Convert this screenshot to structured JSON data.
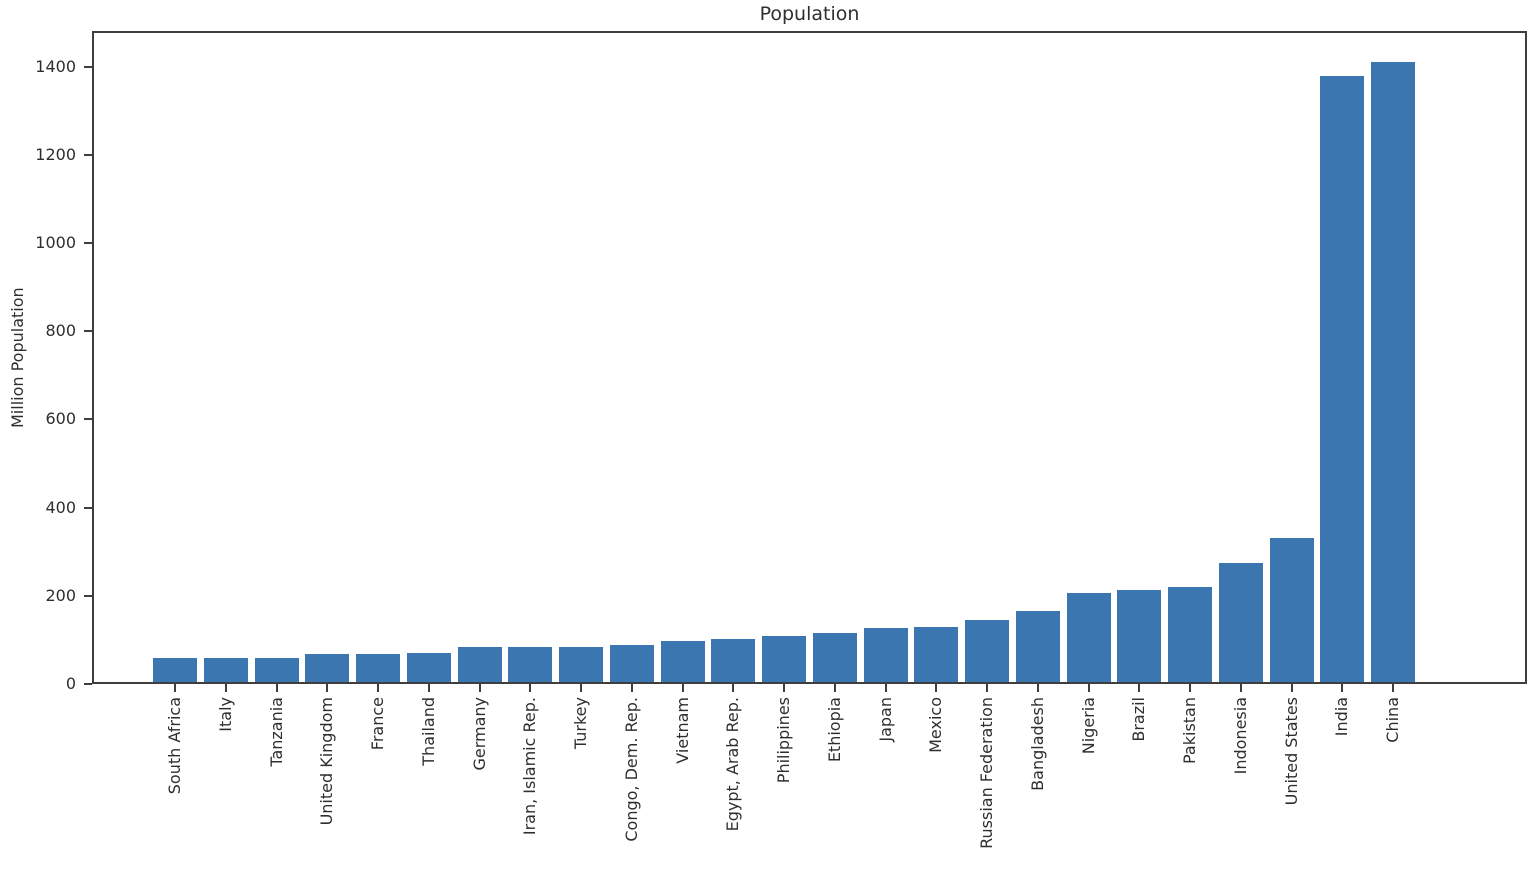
{
  "chart_data": {
    "type": "bar",
    "title": "Population",
    "xlabel": "",
    "ylabel": "Million Population",
    "categories": [
      "South Africa",
      "Italy",
      "Tanzania",
      "United Kingdom",
      "France",
      "Thailand",
      "Germany",
      "Iran, Islamic Rep.",
      "Turkey",
      "Congo, Dem. Rep.",
      "Vietnam",
      "Egypt, Arab Rep.",
      "Philippines",
      "Ethiopia",
      "Japan",
      "Mexico",
      "Russian Federation",
      "Bangladesh",
      "Nigeria",
      "Brazil",
      "Pakistan",
      "Indonesia",
      "United States",
      "India",
      "China"
    ],
    "values": [
      59.31,
      59.55,
      59.73,
      67.22,
      67.39,
      69.8,
      83.24,
      83.99,
      84.34,
      89.56,
      97.34,
      102.33,
      109.58,
      114.96,
      126.26,
      128.93,
      144.1,
      164.69,
      206.14,
      212.56,
      220.89,
      273.52,
      331.5,
      1380.0,
      1410.93
    ],
    "ylim": [
      0,
      1481
    ],
    "yticks": [
      0,
      200,
      400,
      600,
      800,
      1000,
      1200,
      1400
    ],
    "bar_color": "#3b76b0",
    "axis_color": "#3e3e3e",
    "text_color": "#2e2e2e",
    "grid": false,
    "legend": null
  }
}
